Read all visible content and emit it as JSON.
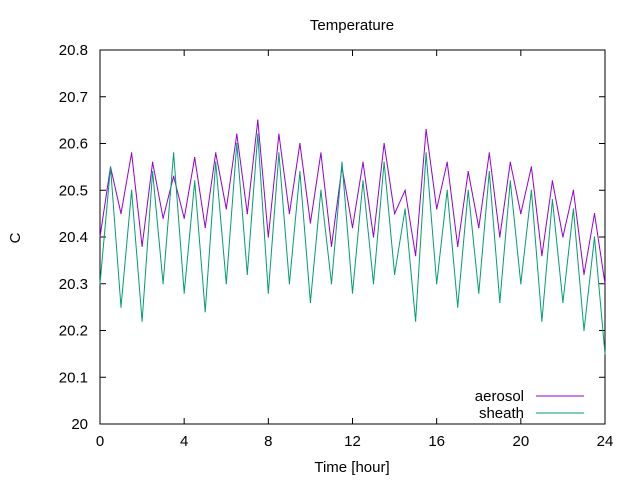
{
  "chart_data": {
    "type": "line",
    "title": "Temperature",
    "xlabel": "Time [hour]",
    "ylabel": "C",
    "xlim": [
      0,
      24
    ],
    "ylim": [
      20.0,
      20.8
    ],
    "x_ticks": [
      0,
      4,
      8,
      12,
      16,
      20,
      24
    ],
    "y_ticks": [
      "20",
      "20.1",
      "20.2",
      "20.3",
      "20.4",
      "20.5",
      "20.6",
      "20.7",
      "20.8"
    ],
    "grid": false,
    "legend_position": "bottom-right",
    "series": [
      {
        "name": "aerosol",
        "color": "#9400d3",
        "x": [
          0,
          0.5,
          1,
          1.5,
          2,
          2.5,
          3,
          3.5,
          4,
          4.5,
          5,
          5.5,
          6,
          6.5,
          7,
          7.5,
          8,
          8.5,
          9,
          9.5,
          10,
          10.5,
          11,
          11.5,
          12,
          12.5,
          13,
          13.5,
          14,
          14.5,
          15,
          15.5,
          16,
          16.5,
          17,
          17.5,
          18,
          18.5,
          19,
          19.5,
          20,
          20.5,
          21,
          21.5,
          22,
          22.5,
          23,
          23.5,
          24
        ],
        "values": [
          20.4,
          20.55,
          20.45,
          20.58,
          20.38,
          20.56,
          20.44,
          20.53,
          20.44,
          20.57,
          20.42,
          20.58,
          20.46,
          20.62,
          20.45,
          20.65,
          20.4,
          20.62,
          20.45,
          20.6,
          20.43,
          20.58,
          20.38,
          20.55,
          20.42,
          20.56,
          20.4,
          20.6,
          20.45,
          20.5,
          20.36,
          20.63,
          20.46,
          20.56,
          20.38,
          20.54,
          20.42,
          20.58,
          20.4,
          20.56,
          20.45,
          20.55,
          20.36,
          20.52,
          20.4,
          20.5,
          20.32,
          20.45,
          20.3
        ]
      },
      {
        "name": "sheath",
        "color": "#009e73",
        "x": [
          0,
          0.5,
          1,
          1.5,
          2,
          2.5,
          3,
          3.5,
          4,
          4.5,
          5,
          5.5,
          6,
          6.5,
          7,
          7.5,
          8,
          8.5,
          9,
          9.5,
          10,
          10.5,
          11,
          11.5,
          12,
          12.5,
          13,
          13.5,
          14,
          14.5,
          15,
          15.5,
          16,
          16.5,
          17,
          17.5,
          18,
          18.5,
          19,
          19.5,
          20,
          20.5,
          21,
          21.5,
          22,
          22.5,
          23,
          23.5,
          24
        ],
        "values": [
          20.3,
          20.55,
          20.25,
          20.5,
          20.22,
          20.54,
          20.3,
          20.58,
          20.28,
          20.52,
          20.24,
          20.56,
          20.3,
          20.6,
          20.32,
          20.62,
          20.28,
          20.58,
          20.3,
          20.54,
          20.26,
          20.5,
          20.3,
          20.56,
          20.28,
          20.52,
          20.3,
          20.56,
          20.32,
          20.46,
          20.22,
          20.58,
          20.3,
          20.5,
          20.25,
          20.5,
          20.28,
          20.54,
          20.26,
          20.52,
          20.3,
          20.5,
          20.22,
          20.48,
          20.26,
          20.46,
          20.2,
          20.4,
          20.15
        ]
      }
    ]
  }
}
